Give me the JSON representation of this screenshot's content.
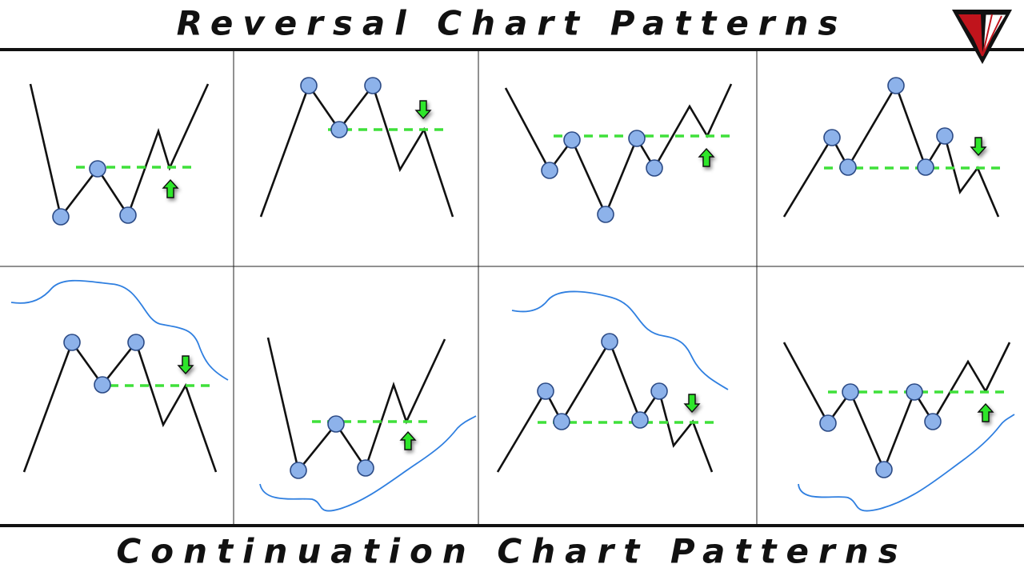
{
  "header": {
    "title": "Reversal Chart Patterns"
  },
  "footer": {
    "title": "Continuation Chart Patterns"
  }
}
